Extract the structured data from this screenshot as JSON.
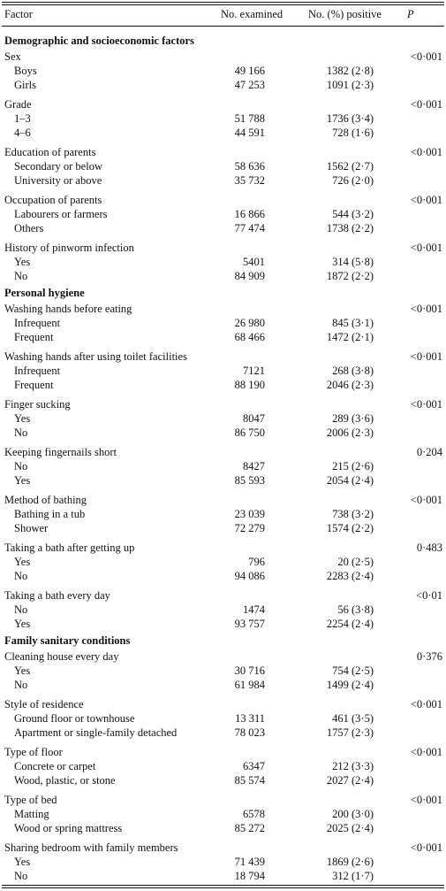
{
  "columns": [
    "Factor",
    "No. examined",
    "No. (%) positive",
    "P"
  ],
  "sections": [
    {
      "title": "Demographic and socioeconomic factors",
      "groups": [
        {
          "factor": "Sex",
          "p": "<0·001",
          "rows": [
            [
              "Boys",
              "49 166",
              "1382 (2·8)"
            ],
            [
              "Girls",
              "47 253",
              "1091 (2·3)"
            ]
          ]
        },
        {
          "factor": "Grade",
          "p": "<0·001",
          "rows": [
            [
              "1–3",
              "51 788",
              "1736 (3·4)"
            ],
            [
              "4–6",
              "44 591",
              "728 (1·6)"
            ]
          ]
        },
        {
          "factor": "Education of parents",
          "p": "<0·001",
          "rows": [
            [
              "Secondary or below",
              "58 636",
              "1562 (2·7)"
            ],
            [
              "University or above",
              "35 732",
              "726 (2·0)"
            ]
          ]
        },
        {
          "factor": "Occupation of parents",
          "p": "<0·001",
          "rows": [
            [
              "Labourers or farmers",
              "16 866",
              "544 (3·2)"
            ],
            [
              "Others",
              "77 474",
              "1738 (2·2)"
            ]
          ]
        },
        {
          "factor": "History of pinworm infection",
          "p": "<0·001",
          "rows": [
            [
              "Yes",
              "5401",
              "314 (5·8)"
            ],
            [
              "No",
              "84 909",
              "1872 (2·2)"
            ]
          ]
        }
      ]
    },
    {
      "title": "Personal hygiene",
      "groups": [
        {
          "factor": "Washing hands before eating",
          "p": "<0·001",
          "rows": [
            [
              "Infrequent",
              "26 980",
              "845 (3·1)"
            ],
            [
              "Frequent",
              "68 466",
              "1472 (2·1)"
            ]
          ]
        },
        {
          "factor": "Washing hands after using toilet facilities",
          "p": "<0·001",
          "rows": [
            [
              "Infrequent",
              "7121",
              "268 (3·8)"
            ],
            [
              "Frequent",
              "88 190",
              "2046 (2·3)"
            ]
          ]
        },
        {
          "factor": "Finger sucking",
          "p": "<0·001",
          "rows": [
            [
              "Yes",
              "8047",
              "289 (3·6)"
            ],
            [
              "No",
              "86 750",
              "2006 (2·3)"
            ]
          ]
        },
        {
          "factor": "Keeping fingernails short",
          "p": "0·204",
          "rows": [
            [
              "No",
              "8427",
              "215 (2·6)"
            ],
            [
              "Yes",
              "85 593",
              "2054 (2·4)"
            ]
          ]
        },
        {
          "factor": "Method of bathing",
          "p": "<0·001",
          "rows": [
            [
              "Bathing in a tub",
              "23 039",
              "738 (3·2)"
            ],
            [
              "Shower",
              "72 279",
              "1574 (2·2)"
            ]
          ]
        },
        {
          "factor": "Taking a bath after getting up",
          "p": "0·483",
          "rows": [
            [
              "Yes",
              "796",
              "20 (2·5)"
            ],
            [
              "No",
              "94 086",
              "2283 (2·4)"
            ]
          ]
        },
        {
          "factor": "Taking a bath every day",
          "p": "<0·01",
          "rows": [
            [
              "No",
              "1474",
              "56 (3·8)"
            ],
            [
              "Yes",
              "93 757",
              "2254 (2·4)"
            ]
          ]
        }
      ]
    },
    {
      "title": "Family sanitary conditions",
      "groups": [
        {
          "factor": "Cleaning house every day",
          "p": "0·376",
          "rows": [
            [
              "Yes",
              "30 716",
              "754 (2·5)"
            ],
            [
              "No",
              "61 984",
              "1499 (2·4)"
            ]
          ]
        },
        {
          "factor": "Style of residence",
          "p": "<0·001",
          "rows": [
            [
              "Ground floor or townhouse",
              "13 311",
              "461 (3·5)"
            ],
            [
              "Apartment or single-family detached",
              "78 023",
              "1757 (2·3)"
            ]
          ]
        },
        {
          "factor": "Type of floor",
          "p": "<0·001",
          "rows": [
            [
              "Concrete or carpet",
              "6347",
              "212 (3·3)"
            ],
            [
              "Wood, plastic, or stone",
              "85 574",
              "2027 (2·4)"
            ]
          ]
        },
        {
          "factor": "Type of bed",
          "p": "<0·001",
          "rows": [
            [
              "Matting",
              "6578",
              "200 (3·0)"
            ],
            [
              "Wood or spring mattress",
              "85 272",
              "2025 (2·4)"
            ]
          ]
        },
        {
          "factor": "Sharing bedroom with family members",
          "p": "<0·001",
          "rows": [
            [
              "Yes",
              "71 439",
              "1869 (2·6)"
            ],
            [
              "No",
              "18 794",
              "312 (1·7)"
            ]
          ]
        }
      ]
    }
  ]
}
